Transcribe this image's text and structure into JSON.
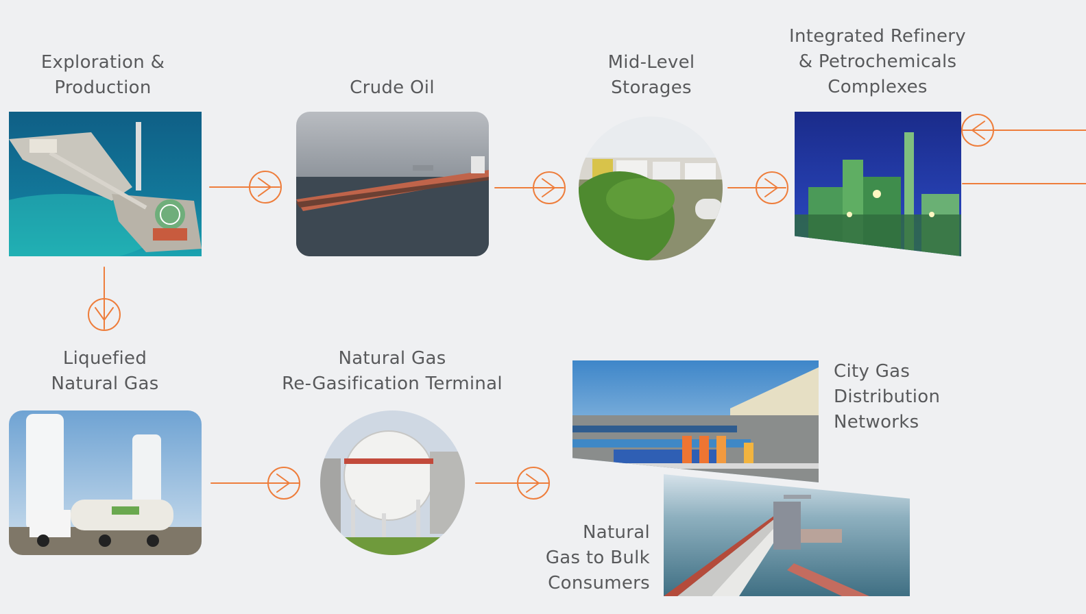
{
  "nodes": {
    "exploration": {
      "label": "Exploration &\nProduction"
    },
    "crude": {
      "label": "Crude Oil"
    },
    "storages": {
      "label": "Mid-Level\nStorages"
    },
    "refinery": {
      "label": "Integrated Refinery\n& Petrochemicals\nComplexes"
    },
    "lng": {
      "label": "Liquefied\nNatural Gas"
    },
    "terminal": {
      "label": "Natural Gas\nRe-Gasification Terminal"
    },
    "citygas": {
      "label": "City Gas\nDistribution\nNetworks"
    },
    "bulk": {
      "label": "Natural\nGas to Bulk\nConsumers"
    }
  },
  "colors": {
    "accent": "#ee7d3b",
    "text": "#58595b",
    "background": "#eff0f2"
  },
  "icons": {
    "arrow": "arrow-right-circle-icon",
    "arrow_down": "arrow-down-circle-icon",
    "arrow_left": "arrow-left-circle-icon"
  }
}
